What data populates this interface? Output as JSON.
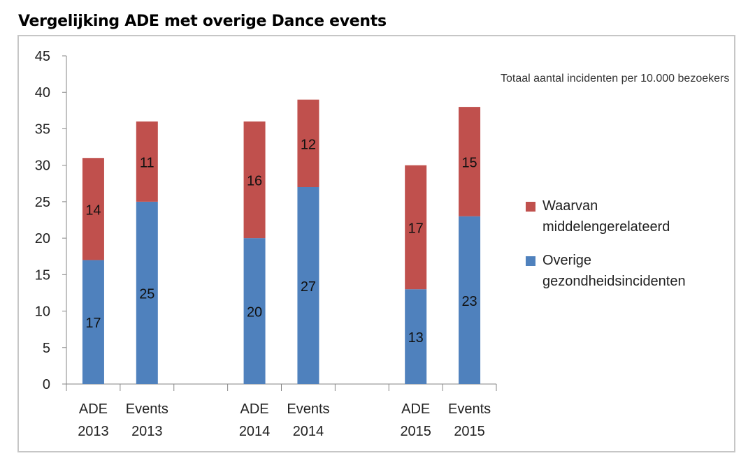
{
  "page_title": "Vergelijking ADE met overige Dance events",
  "chart_data": {
    "type": "bar",
    "stacked": true,
    "title": "Vergelijking ADE met overige Dance events",
    "annotation": "Totaal aantal incidenten per 10.000 bezoekers",
    "xlabel": "",
    "ylabel": "",
    "ylim": [
      0,
      45
    ],
    "yticks": [
      0,
      5,
      10,
      15,
      20,
      25,
      30,
      35,
      40,
      45
    ],
    "grid": false,
    "legend_position": "right",
    "categories": [
      {
        "line1": "ADE",
        "line2": "2013"
      },
      {
        "line1": "Events",
        "line2": "2013"
      },
      {
        "line1": "",
        "line2": ""
      },
      {
        "line1": "ADE",
        "line2": "2014"
      },
      {
        "line1": "Events",
        "line2": "2014"
      },
      {
        "line1": "",
        "line2": ""
      },
      {
        "line1": "ADE",
        "line2": "2015"
      },
      {
        "line1": "Events",
        "line2": "2015"
      }
    ],
    "series": [
      {
        "name": "Overige gezondheidsincidenten",
        "legend_line1": "Overige",
        "legend_line2": "gezondheidsincidenten",
        "color": "#4f81bd",
        "values": [
          17,
          25,
          null,
          20,
          27,
          null,
          13,
          23
        ]
      },
      {
        "name": "Waarvan middelengerelateerd",
        "legend_line1": "Waarvan",
        "legend_line2": "middelengerelateerd",
        "color": "#c0504d",
        "values": [
          14,
          11,
          null,
          16,
          12,
          null,
          17,
          15
        ]
      }
    ]
  }
}
